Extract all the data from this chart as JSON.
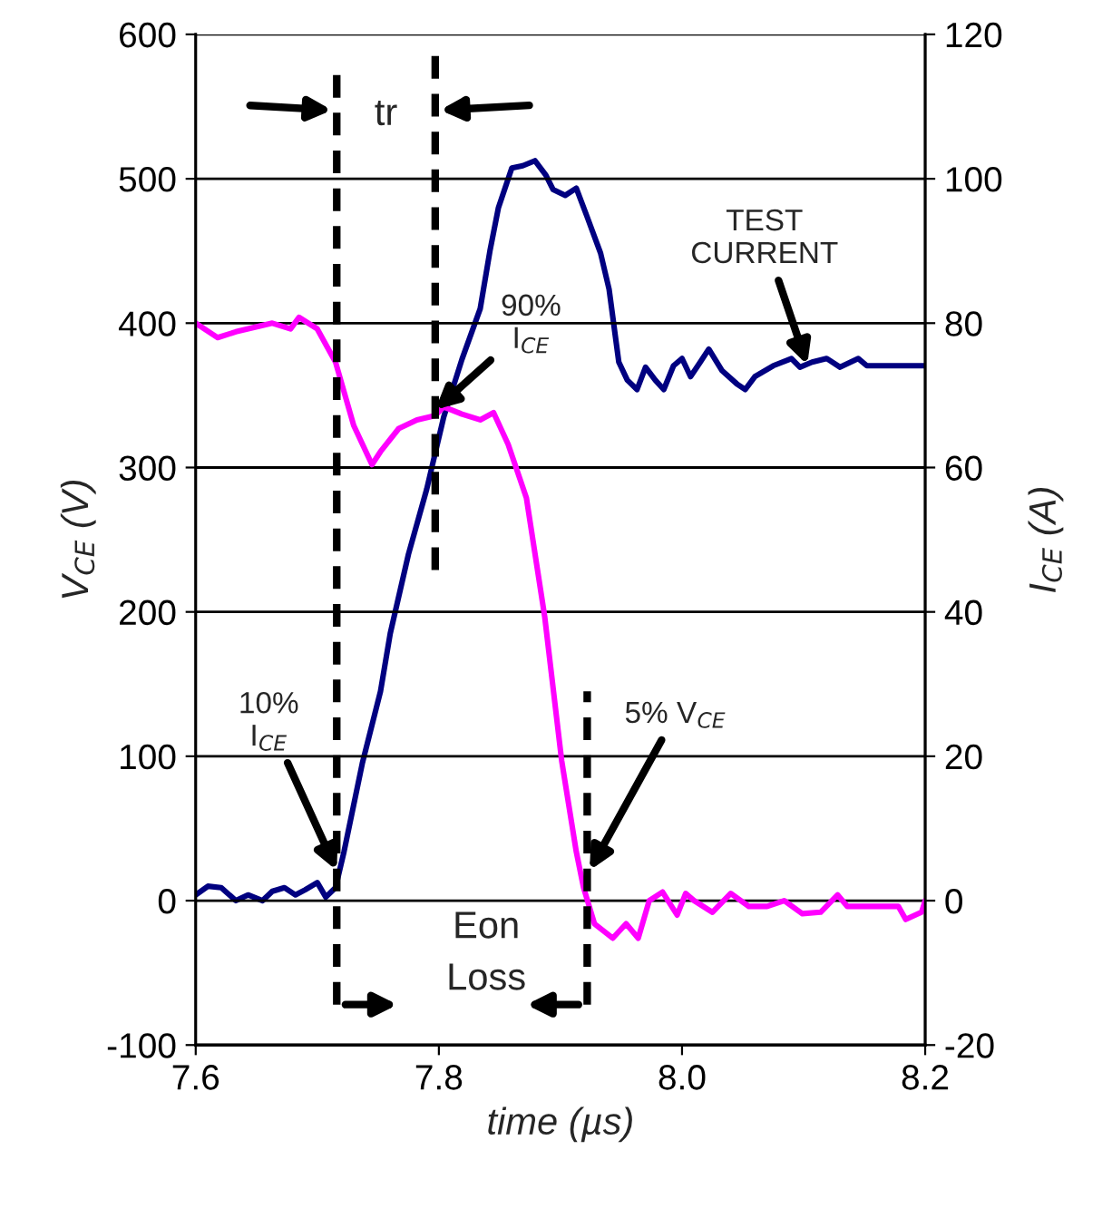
{
  "chart_data": {
    "type": "line",
    "xlabel": "time (µs)",
    "ylabel": "V$_{CE}$ (V)",
    "y2label": "I$_{CE}$ (A)",
    "xlim": [
      7.6,
      8.2
    ],
    "xticks": [
      7.6,
      7.8,
      {
        "value": 8.0,
        "label": "8.0"
      },
      8.2
    ],
    "ylim": [
      -100,
      600
    ],
    "yticks": [
      -100,
      0,
      100,
      200,
      300,
      400,
      500,
      600
    ],
    "y2lim": [
      -20,
      120
    ],
    "y2ticks": [
      -20,
      0,
      20,
      40,
      60,
      80,
      100,
      120
    ],
    "grid": "y",
    "line_style": "solid",
    "marker": "none",
    "series": [
      {
        "color": "#ff00ff",
        "x": [
          7.6,
          7.618,
          7.633,
          7.663,
          7.678,
          7.685,
          7.7,
          7.715,
          7.73,
          7.745,
          7.752,
          7.767,
          7.782,
          7.797,
          7.804,
          7.819,
          7.834,
          7.845,
          7.857,
          7.872,
          7.887,
          7.901,
          7.913,
          7.919,
          7.928,
          7.943,
          7.954,
          7.964,
          7.973,
          7.984,
          7.996,
          8.003,
          8.01,
          8.025,
          8.04,
          8.055,
          8.07,
          8.084,
          8.099,
          8.114,
          8.128,
          8.136,
          8.16,
          8.178,
          8.184,
          8.197,
          8.2
        ],
        "values": [
          400,
          390,
          394,
          400,
          396,
          404,
          396,
          373,
          329,
          302,
          311,
          327,
          333,
          336,
          342,
          337,
          333,
          338,
          316,
          279,
          197,
          97,
          34,
          9,
          -16,
          -26,
          -16,
          -26,
          0,
          6,
          -10,
          5,
          0,
          -8,
          5,
          -4,
          -4,
          0,
          -9,
          -8,
          4,
          -4,
          -4,
          -4,
          -13,
          -8,
          0
        ]
      },
      {
        "color": "#000080",
        "axis": "y2",
        "x": [
          7.6,
          7.61,
          7.621,
          7.633,
          7.643,
          7.655,
          7.663,
          7.673,
          7.682,
          7.69,
          7.7,
          7.707,
          7.715,
          7.722,
          7.737,
          7.752,
          7.76,
          7.775,
          7.79,
          7.804,
          7.819,
          7.834,
          7.842,
          7.849,
          7.86,
          7.869,
          7.879,
          7.888,
          7.894,
          7.904,
          7.913,
          7.922,
          7.933,
          7.94,
          7.948,
          7.955,
          7.963,
          7.97,
          7.978,
          7.985,
          7.993,
          8.0,
          8.007,
          8.015,
          8.022,
          8.033,
          8.045,
          8.052,
          8.06,
          8.075,
          8.09,
          8.097,
          8.107,
          8.119,
          8.13,
          8.145,
          8.152,
          8.2
        ],
        "values": [
          0.8,
          2,
          1.8,
          0,
          0.8,
          0,
          1.3,
          1.8,
          0.8,
          1.5,
          2.5,
          0.5,
          1.8,
          6.8,
          19,
          29,
          37,
          48,
          57,
          67,
          75,
          82,
          90,
          96,
          101.5,
          101.8,
          102.5,
          100.5,
          98.5,
          97.7,
          98.7,
          94.7,
          89.7,
          84.7,
          74.6,
          72.1,
          70.8,
          73.9,
          72.1,
          70.8,
          74.1,
          75.1,
          72.6,
          74.6,
          76.4,
          73.4,
          71.6,
          70.8,
          72.6,
          74.1,
          75.1,
          73.9,
          74.6,
          75.1,
          73.9,
          75.1,
          74.1,
          74.1
        ]
      }
    ],
    "ref_lines": [
      {
        "axis": "x",
        "value": 7.716,
        "color": "#000000",
        "line_style": "dashed"
      },
      {
        "axis": "x",
        "value": 7.797,
        "color": "#000000",
        "line_style": "dashed"
      },
      {
        "axis": "x",
        "value": 7.922,
        "color": "#000000",
        "line_style": "dashed"
      }
    ],
    "annotations": [
      "tr",
      {
        "text": "10%\nI$_{CE}$",
        "x": 7.716,
        "y": 21
      },
      {
        "text": "90%\nI$_{CE}$",
        "x": 7.797,
        "y": 340
      },
      {
        "text": "TEST\nCURRENT",
        "x": 8.103,
        "y": 371
      },
      {
        "text": "5% V$_{CE}$",
        "x": 7.924,
        "y": 21
      },
      "Eon\nLoss"
    ]
  }
}
